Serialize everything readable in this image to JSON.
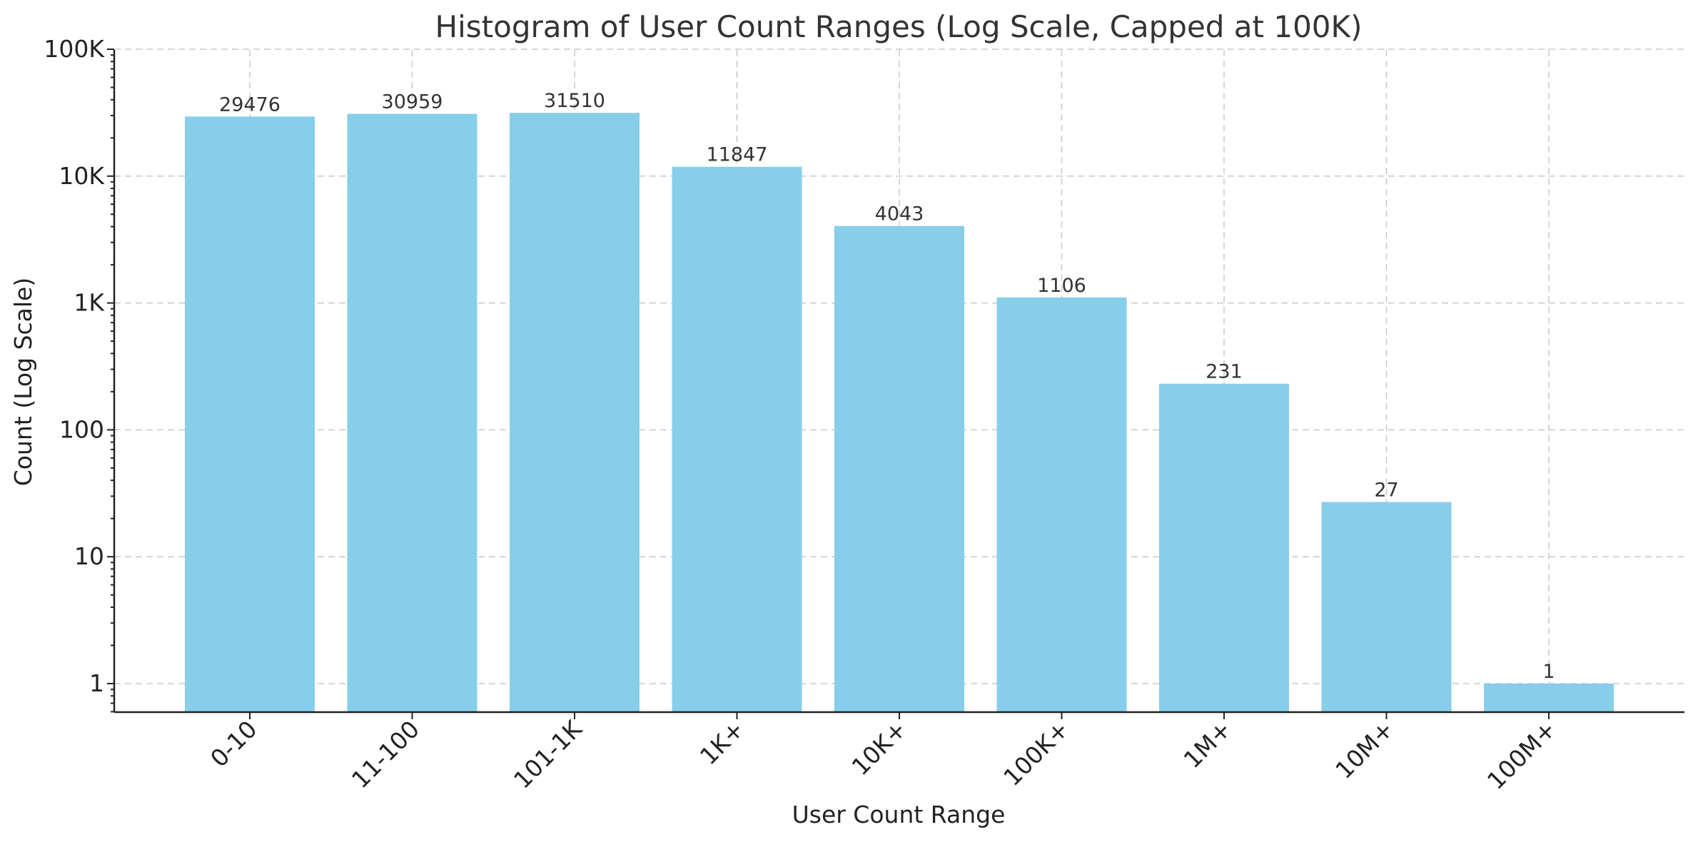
{
  "chart_data": {
    "type": "bar",
    "title": "Histogram of User Count Ranges (Log Scale, Capped at 100K)",
    "xlabel": "User Count Range",
    "ylabel": "Count (Log Scale)",
    "yscale": "log",
    "ylim": [
      0.6,
      100000
    ],
    "grid": true,
    "bar_color": "#87CEEB",
    "categories": [
      "0-10",
      "11-100",
      "101-1K",
      "1K+",
      "10K+",
      "100K+",
      "1M+",
      "10M+",
      "100M+"
    ],
    "values": [
      29476,
      30959,
      31510,
      11847,
      4043,
      1106,
      231,
      27,
      1
    ],
    "data_labels": [
      "29476",
      "30959",
      "31510",
      "11847",
      "4043",
      "1106",
      "231",
      "27",
      "1"
    ],
    "yticks": [
      1,
      10,
      100,
      1000,
      10000,
      100000
    ],
    "ytick_labels": [
      "1",
      "10",
      "100",
      "1K",
      "10K",
      "100K"
    ]
  }
}
